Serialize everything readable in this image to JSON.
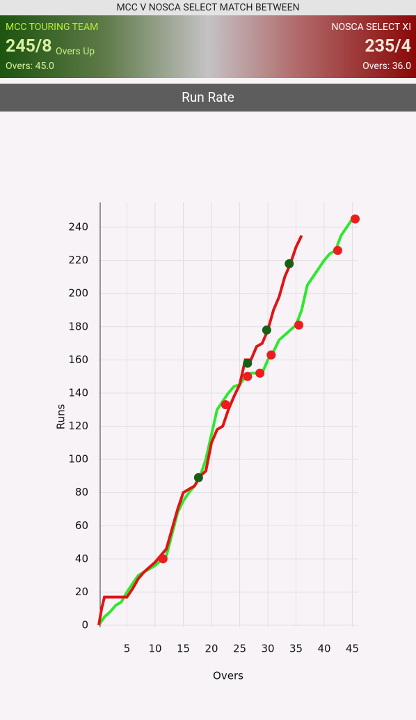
{
  "header": {
    "match": "MCC V NOSCA SELECT MATCH BETWEEN",
    "home": {
      "team": "MCC TOURING TEAM",
      "score": "245/8",
      "note": "Overs Up",
      "overs": "Overs: 45.0"
    },
    "away": {
      "team": "NOSCA SELECT XI",
      "score": "235/4",
      "overs": "Overs: 36.0"
    }
  },
  "tab": "Run Rate",
  "chart_data": {
    "type": "line",
    "xlabel": "Overs",
    "ylabel": "Runs",
    "xlim": [
      0,
      46
    ],
    "ylim": [
      0,
      255
    ],
    "xticks": [
      5,
      10,
      15,
      20,
      25,
      30,
      35,
      40,
      45
    ],
    "yticks": [
      0,
      20,
      40,
      60,
      80,
      100,
      120,
      140,
      160,
      180,
      200,
      220,
      240
    ],
    "grid": true,
    "series": [
      {
        "color": "#2ee82e",
        "x": [
          0,
          1,
          2,
          3,
          4,
          5,
          6,
          7,
          8,
          9,
          10,
          11,
          12,
          13,
          14,
          15,
          16,
          17,
          18,
          19,
          20,
          21,
          22,
          23,
          24,
          25,
          26,
          27,
          28,
          29,
          30,
          31,
          32,
          33,
          34,
          35,
          36,
          37,
          38,
          39,
          40,
          41,
          42,
          43,
          44,
          45
        ],
        "values": [
          0,
          5,
          8,
          12,
          14,
          20,
          25,
          30,
          32,
          34,
          36,
          39,
          42,
          55,
          68,
          75,
          80,
          84,
          90,
          100,
          115,
          130,
          135,
          140,
          144,
          145,
          150,
          152,
          152,
          152,
          160,
          165,
          172,
          175,
          178,
          181,
          190,
          205,
          210,
          215,
          220,
          224,
          226,
          235,
          240,
          245
        ],
        "wicket_color": "#ee1c1c",
        "wicket_x": [
          11.4,
          22.5,
          26.4,
          28.6,
          30.6,
          35.5,
          42.4,
          45.5
        ],
        "wicket_values": [
          40,
          133,
          150,
          152,
          163,
          181,
          226,
          245
        ]
      },
      {
        "color": "#e01414",
        "x": [
          0,
          0.5,
          1,
          2,
          3,
          4,
          5,
          6,
          7,
          8,
          9,
          10,
          11,
          12,
          13,
          14,
          15,
          16,
          17,
          18,
          19,
          20,
          21,
          22,
          23,
          24,
          25,
          26,
          27,
          28,
          29,
          30,
          31,
          32,
          33,
          34,
          35,
          36
        ],
        "values": [
          0,
          10,
          17,
          17,
          17,
          17,
          17,
          22,
          28,
          32,
          35,
          38,
          42,
          46,
          58,
          70,
          80,
          82,
          84,
          90,
          93,
          110,
          118,
          120,
          130,
          138,
          145,
          160,
          160,
          168,
          170,
          178,
          190,
          198,
          210,
          218,
          228,
          235
        ],
        "wicket_color": "#156015",
        "wicket_x": [
          17.7,
          26.4,
          29.8,
          33.8
        ],
        "wicket_values": [
          89,
          158,
          178,
          218
        ]
      }
    ]
  }
}
